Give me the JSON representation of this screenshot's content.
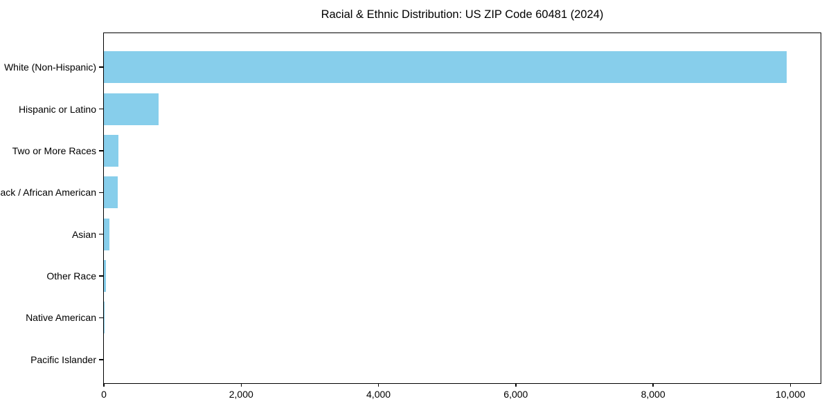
{
  "chart_data": {
    "type": "bar",
    "orientation": "horizontal",
    "title": "Racial & Ethnic Distribution: US ZIP Code 60481 (2024)",
    "categories": [
      "White (Non-Hispanic)",
      "Hispanic or Latino",
      "Two or More Races",
      "Black / African American",
      "Asian",
      "Other Race",
      "Native American",
      "Pacific Islander"
    ],
    "values": [
      9950,
      800,
      210,
      200,
      78,
      35,
      10,
      0
    ],
    "bar_color": "#87CEEB",
    "text_color": "#000000",
    "spine_color": "#000000",
    "background_color": "#ffffff",
    "xlabel": "",
    "ylabel": "",
    "xlim": [
      0,
      10440
    ],
    "x_ticks": [
      0,
      2000,
      4000,
      6000,
      8000,
      10000
    ],
    "x_tick_labels": [
      "0",
      "2,000",
      "4,000",
      "6,000",
      "8,000",
      "10,000"
    ],
    "grid": false,
    "legend": null,
    "category_axis": "left",
    "largest_bar_on_top": true
  }
}
